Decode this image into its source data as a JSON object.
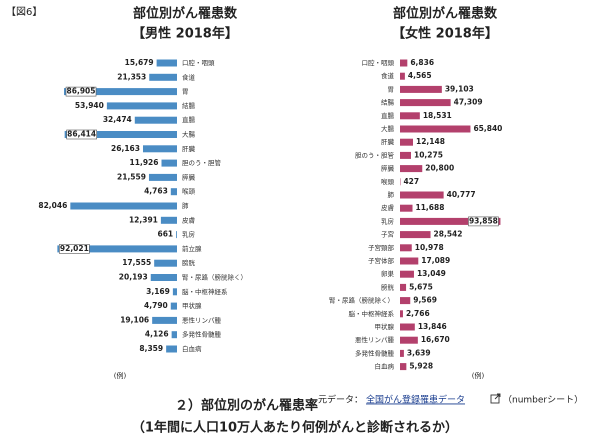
{
  "figure_label": "【図6】",
  "chart_data": [
    {
      "type": "bar",
      "orientation": "horizontal",
      "direction": "left",
      "title": "部位別がん罹患数",
      "subtitle": "【男性 2018年】",
      "xlabel": "(例)",
      "color": "#4a8cc4",
      "xlim": [
        0,
        100000
      ],
      "categories": [
        "口腔・咽頭",
        "食道",
        "胃",
        "結腸",
        "直腸",
        "大腸",
        "肝臓",
        "胆のう・胆管",
        "膵臓",
        "喉頭",
        "肺",
        "皮膚",
        "乳房",
        "前立腺",
        "膀胱",
        "腎・尿路（膀胱除く）",
        "脳・中枢神経系",
        "甲状腺",
        "悪性リンパ腫",
        "多発性骨髄腫",
        "白血病"
      ],
      "values": [
        15679,
        21353,
        86905,
        53940,
        32474,
        86414,
        26163,
        11926,
        21559,
        4763,
        82046,
        12391,
        661,
        92021,
        17555,
        20193,
        3169,
        4790,
        19106,
        4126,
        8359
      ],
      "value_labels": [
        "15,679",
        "21,353",
        "86,905",
        "53,940",
        "32,474",
        "86,414",
        "26,163",
        "11,926",
        "21,559",
        "4,763",
        "82,046",
        "12,391",
        "661",
        "92,021",
        "17,555",
        "20,193",
        "3,169",
        "4,790",
        "19,106",
        "4,126",
        "8,359"
      ]
    },
    {
      "type": "bar",
      "orientation": "horizontal",
      "direction": "right",
      "title": "部位別がん罹患数",
      "subtitle": "【女性 2018年】",
      "xlabel": "(例)",
      "color": "#b3406c",
      "xlim": [
        0,
        100000
      ],
      "categories": [
        "口腔・咽頭",
        "食道",
        "胃",
        "結腸",
        "直腸",
        "大腸",
        "肝臓",
        "胆のう・胆管",
        "膵臓",
        "喉頭",
        "肺",
        "皮膚",
        "乳房",
        "子宮",
        "子宮頸部",
        "子宮体部",
        "卵巣",
        "膀胱",
        "腎・尿路（膀胱除く）",
        "脳・中枢神経系",
        "甲状腺",
        "悪性リンパ腫",
        "多発性骨髄腫",
        "白血病"
      ],
      "values": [
        6836,
        4565,
        39103,
        47309,
        18531,
        65840,
        12148,
        10275,
        20800,
        427,
        40777,
        11688,
        93858,
        28542,
        10978,
        17089,
        13049,
        5675,
        9569,
        2766,
        13846,
        16670,
        3639,
        5928
      ],
      "value_labels": [
        "6,836",
        "4,565",
        "39,103",
        "47,309",
        "18,531",
        "65,840",
        "12,148",
        "10,275",
        "20,800",
        "427",
        "40,777",
        "11,688",
        "93,858",
        "28,542",
        "10,978",
        "17,089",
        "13,049",
        "5,675",
        "9,569",
        "2,766",
        "13,846",
        "16,670",
        "3,639",
        "5,928"
      ]
    }
  ],
  "caption": {
    "title": "２）部位別のがん罹患率",
    "subtitle": "（1年間に人口10万人あたり何例がんと診断されるか）"
  },
  "source": {
    "prefix": "元データ：",
    "link": "全国がん登録罹患データ",
    "suffix": "（numberシート）"
  }
}
